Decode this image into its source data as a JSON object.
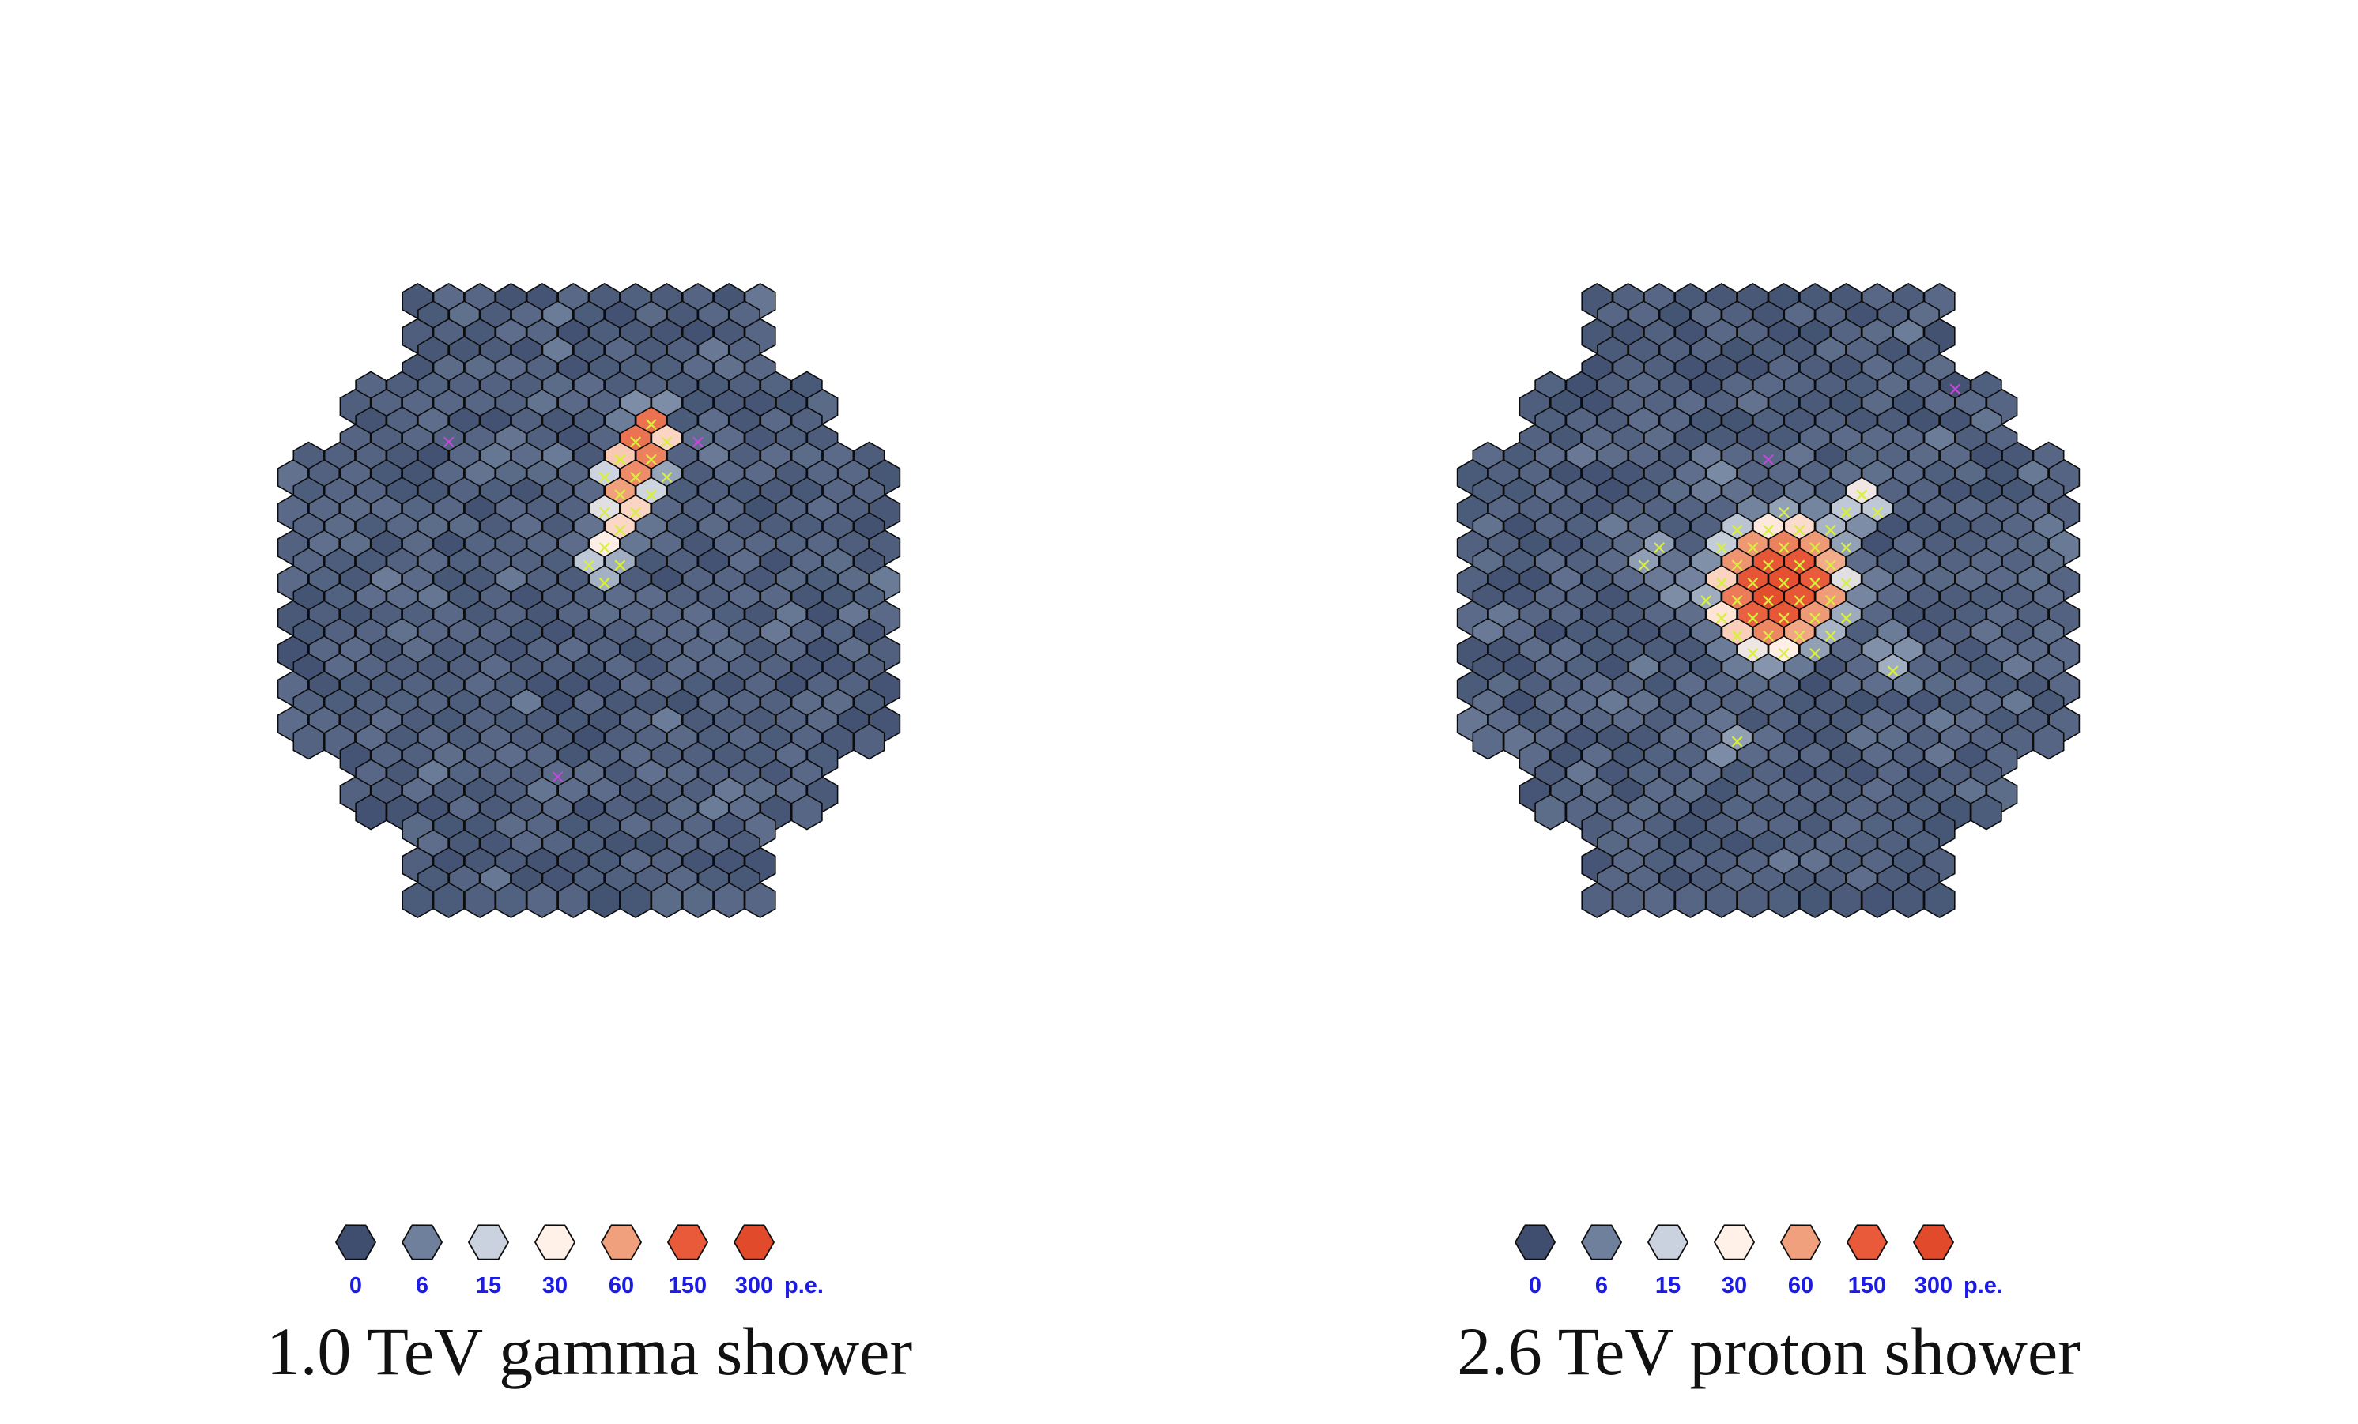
{
  "panels": [
    {
      "caption": "1.0 TeV gamma shower",
      "shower": {
        "spine": [
          [
            4.0,
            10.0
          ],
          [
            3.7,
            9.0
          ],
          [
            3.2,
            7.8
          ],
          [
            2.6,
            6.8
          ],
          [
            2.3,
            5.3
          ],
          [
            1.7,
            4.0
          ],
          [
            1.2,
            2.7
          ],
          [
            0.6,
            1.7
          ],
          [
            0.1,
            1.0
          ]
        ],
        "widths": [
          0.6,
          0.75,
          0.9,
          0.9,
          0.85,
          0.8,
          0.75,
          0.7,
          0.5
        ],
        "amplitudes": [
          120,
          180,
          110,
          80,
          60,
          40,
          30,
          22,
          12
        ],
        "outliers": [
          [
            -9.0,
            8.5
          ],
          [
            7.1,
            9.4
          ],
          [
            7.1,
            3.9
          ],
          [
            -1.7,
            -10.0
          ],
          [
            2.9,
            -14.2
          ]
        ],
        "seed": 11
      }
    },
    {
      "caption": "2.6 TeV proton shower",
      "shower": {
        "spine": [
          [
            -1.5,
            -1.0
          ],
          [
            -0.8,
            -0.2
          ],
          [
            0.3,
            0.5
          ],
          [
            1.5,
            1.0
          ],
          [
            2.3,
            1.2
          ],
          [
            3.5,
            0.4
          ],
          [
            4.5,
            0.2
          ]
        ],
        "widths": [
          1.1,
          1.4,
          1.7,
          1.6,
          1.3,
          1.0,
          0.8
        ],
        "amplitudes": [
          70,
          140,
          280,
          230,
          150,
          80,
          40
        ],
        "blobs": [
          {
            "center": [
              6.0,
              5.5
            ],
            "width": 0.9,
            "amplitude": 30
          },
          {
            "center": [
              -7.5,
              2.5
            ],
            "width": 1.0,
            "amplitude": 12
          },
          {
            "center": [
              -2.6,
              -8.2
            ],
            "width": 0.9,
            "amplitude": 12
          },
          {
            "center": [
              -5.8,
              0.5
            ],
            "width": 1.4,
            "amplitude": 8
          },
          {
            "center": [
              8.0,
              -3.5
            ],
            "width": 1.2,
            "amplitude": 12
          },
          {
            "center": [
              -3.7,
              7.0
            ],
            "width": 1.0,
            "amplitude": 9
          }
        ],
        "outliers": [
          [
            0.6,
            16.0
          ],
          [
            -10.5,
            5.2
          ],
          [
            -10.0,
            -4.6
          ],
          [
            11.6,
            11.8
          ],
          [
            -0.3,
            7.7
          ]
        ],
        "seed": 23
      }
    }
  ],
  "legend": {
    "labels": [
      "0",
      "6",
      "15",
      "30",
      "60",
      "150",
      "300"
    ],
    "unit": "p.e.",
    "colors": [
      "#3f4e6e",
      "#6f809c",
      "#c9d2de",
      "#fff0e8",
      "#f0a07c",
      "#e85a3a",
      "#e24a2c"
    ]
  },
  "camera": {
    "rows": [
      {
        "y": 17,
        "x_min": -11,
        "x_max": 11
      },
      {
        "y": 16,
        "x_min": -11,
        "x_max": 11
      },
      {
        "y": 15,
        "x_min": -11,
        "x_max": 11
      },
      {
        "y": 14,
        "x_min": -11,
        "x_max": 11
      },
      {
        "y": 13,
        "x_min": -11,
        "x_max": 11
      },
      {
        "y": 12,
        "x_min": -15,
        "x_max": 15
      },
      {
        "y": 11,
        "x_min": -15,
        "x_max": 15
      },
      {
        "y": 10,
        "x_min": -15,
        "x_max": 15
      },
      {
        "y": 9,
        "x_min": -15,
        "x_max": 15
      },
      {
        "y": 8,
        "x_min": -19,
        "x_max": 19
      },
      {
        "y": 7,
        "x_min": -19,
        "x_max": 19
      },
      {
        "y": 6,
        "x_min": -19,
        "x_max": 19
      },
      {
        "y": 5,
        "x_min": -19,
        "x_max": 19
      },
      {
        "y": 4,
        "x_min": -19,
        "x_max": 19
      },
      {
        "y": 3,
        "x_min": -19,
        "x_max": 19
      },
      {
        "y": 2,
        "x_min": -19,
        "x_max": 19
      },
      {
        "y": 1,
        "x_min": -19,
        "x_max": 19
      },
      {
        "y": 0,
        "x_min": -19,
        "x_max": 19
      },
      {
        "y": -1,
        "x_min": -19,
        "x_max": 19
      },
      {
        "y": -2,
        "x_min": -19,
        "x_max": 19
      },
      {
        "y": -3,
        "x_min": -19,
        "x_max": 19
      },
      {
        "y": -4,
        "x_min": -19,
        "x_max": 19
      },
      {
        "y": -5,
        "x_min": -19,
        "x_max": 19
      },
      {
        "y": -6,
        "x_min": -19,
        "x_max": 19
      },
      {
        "y": -7,
        "x_min": -19,
        "x_max": 19
      },
      {
        "y": -8,
        "x_min": -19,
        "x_max": 19
      },
      {
        "y": -9,
        "x_min": -15,
        "x_max": 15
      },
      {
        "y": -10,
        "x_min": -15,
        "x_max": 15
      },
      {
        "y": -11,
        "x_min": -15,
        "x_max": 15
      },
      {
        "y": -12,
        "x_min": -15,
        "x_max": 15
      },
      {
        "y": -13,
        "x_min": -11,
        "x_max": 11
      },
      {
        "y": -14,
        "x_min": -11,
        "x_max": 11
      },
      {
        "y": -15,
        "x_min": -11,
        "x_max": 11
      },
      {
        "y": -16,
        "x_min": -11,
        "x_max": 11
      },
      {
        "y": -17,
        "x_min": -11,
        "x_max": 11
      }
    ],
    "marker_colors": {
      "signal": "#d8f03a",
      "isolated": "#c04ad8"
    }
  }
}
